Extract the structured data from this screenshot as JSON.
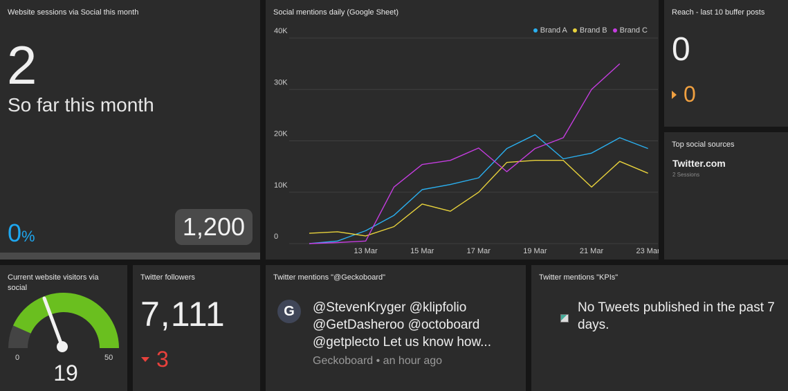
{
  "sessions": {
    "title": "Website sessions via Social this month",
    "value": "2",
    "subtitle": "So far this month",
    "percent": "0",
    "percent_unit": "%",
    "goal": "1,200",
    "progress_fraction": 0.0017
  },
  "mentions": {
    "title": "Social mentions daily (Google Sheet)",
    "legend": [
      "Brand A",
      "Brand B",
      "Brand C"
    ]
  },
  "chart_data": {
    "type": "line",
    "title": "Social mentions daily (Google Sheet)",
    "x": [
      "11 Mar",
      "12 Mar",
      "13 Mar",
      "14 Mar",
      "15 Mar",
      "16 Mar",
      "17 Mar",
      "18 Mar",
      "19 Mar",
      "20 Mar",
      "21 Mar",
      "22 Mar",
      "23 Mar",
      "24 Mar"
    ],
    "x_tick_labels": [
      "13 Mar",
      "15 Mar",
      "17 Mar",
      "19 Mar",
      "21 Mar",
      "23 Mar"
    ],
    "y_tick_labels": [
      "0",
      "10K",
      "20K",
      "30K",
      "40K"
    ],
    "ylim": [
      0,
      40000
    ],
    "series": [
      {
        "name": "Brand A",
        "color": "#2ab0f0",
        "values": [
          0,
          500,
          2500,
          5500,
          10500,
          11500,
          12800,
          18500,
          21200,
          16500,
          17600,
          20600,
          18500,
          null
        ]
      },
      {
        "name": "Brand B",
        "color": "#e8d23c",
        "values": [
          2000,
          2300,
          1500,
          3300,
          7700,
          6300,
          10000,
          15800,
          16200,
          16200,
          11000,
          16000,
          13700,
          null
        ]
      },
      {
        "name": "Brand C",
        "color": "#c53de0",
        "values": [
          0,
          200,
          500,
          11000,
          15400,
          16200,
          18600,
          14000,
          18500,
          20600,
          30000,
          35000,
          null,
          null
        ]
      }
    ],
    "legend_position": "top-right",
    "grid": true
  },
  "reach": {
    "title": "Reach - last 10 buffer posts",
    "value": "0",
    "delta": "0",
    "delta_color": "#f0a040"
  },
  "sources": {
    "title": "Top social sources",
    "top": "Twitter.com",
    "top_sub": "2 Sessions"
  },
  "visitors": {
    "title": "Current website visitors via social",
    "min": "0",
    "max": "50",
    "value": "19",
    "value_fraction": 0.38,
    "color": "#6abf1f"
  },
  "followers": {
    "title": "Twitter followers",
    "value": "7,111",
    "delta": "3",
    "delta_color": "#e8413c"
  },
  "tweet1": {
    "title": "Twitter mentions \"@Geckoboard\"",
    "avatar_letter": "G",
    "text": "@StevenKryger @klipfolio @GetDasheroo @octoboard @getplecto Let us know how...",
    "author": "Geckoboard",
    "separator": " • ",
    "time": "an hour ago"
  },
  "tweet2": {
    "title": "Twitter mentions \"KPIs\"",
    "text": "No Tweets published in the past 7 days."
  }
}
